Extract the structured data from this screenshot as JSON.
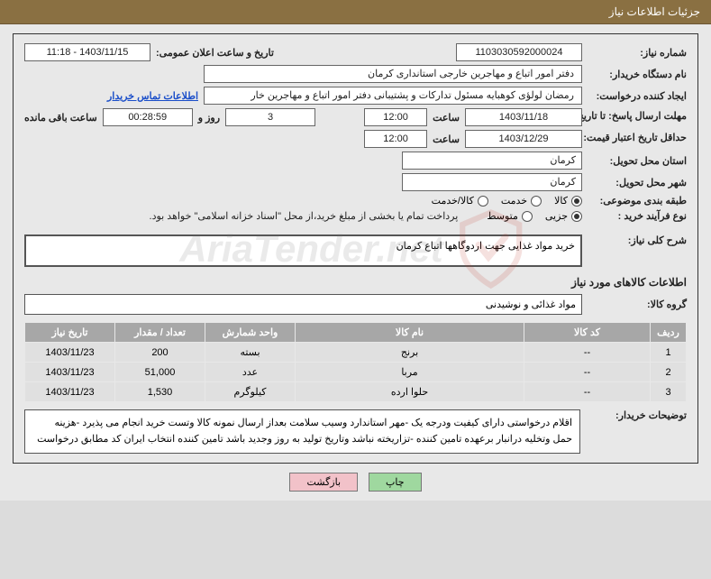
{
  "titleBar": "جزئیات اطلاعات نیاز",
  "fields": {
    "needNo": {
      "label": "شماره نیاز:",
      "value": "1103030592000024"
    },
    "announceDate": {
      "label": "تاریخ و ساعت اعلان عمومی:",
      "value": "1403/11/15 - 11:18"
    },
    "buyerOrg": {
      "label": "نام دستگاه خریدار:",
      "value": "دفتر  امور اتباع و مهاجرین خارجی استانداری کرمان"
    },
    "requester": {
      "label": "ایجاد کننده درخواست:",
      "value": "رمضان لولؤی کوهبایه مسئول تدارکات و پشتیبانی دفتر  امور اتباع و مهاجرین خار"
    },
    "contactLink": "اطلاعات تماس خریدار",
    "replyDeadline": {
      "label": "مهلت ارسال پاسخ: تا تاریخ:",
      "date": "1403/11/18",
      "timeLabel": "ساعت",
      "time": "12:00",
      "daysLabel": "روز و",
      "days": "3",
      "countdown": "00:28:59",
      "remainLabel": "ساعت باقی مانده"
    },
    "priceValidity": {
      "label": "حداقل تاریخ اعتبار قیمت: تا تاریخ:",
      "date": "1403/12/29",
      "timeLabel": "ساعت",
      "time": "12:00"
    },
    "deliveryProvince": {
      "label": "استان محل تحویل:",
      "value": "کرمان"
    },
    "deliveryCity": {
      "label": "شهر محل تحویل:",
      "value": "کرمان"
    },
    "category": {
      "label": "طبقه بندی موضوعی:",
      "options": [
        "کالا",
        "خدمت",
        "کالا/خدمت"
      ],
      "selected": 0
    },
    "purchaseProcess": {
      "label": "نوع فرآیند خرید :",
      "options": [
        "جزیی",
        "متوسط"
      ],
      "selected": 0,
      "note": "پرداخت تمام یا بخشی از مبلغ خرید،از محل \"اسناد خزانه اسلامی\" خواهد بود."
    },
    "needDesc": {
      "label": "شرح کلی نیاز:",
      "value": "خرید مواد غذایی جهت اردوگاهها  اتباع کرمان"
    },
    "itemsHeading": "اطلاعات کالاهای مورد نیاز",
    "itemGroup": {
      "label": "گروه کالا:",
      "value": "مواد غذائی و نوشیدنی"
    },
    "buyerNotes": {
      "label": "توضیحات خریدار:",
      "value": "اقلام درخواستی دارای کیفیت ودرجه یک -مهر استاندارد وسیب سلامت  بعداز ارسال نمونه کالا وتست خرید انجام می پذیرد -هزینه حمل وتخلیه درانبار برعهده تامین کننده -تزاریخته نباشد وتاریخ تولید به روز وجدید باشد  تامین کننده انتخاب ایران کد مطابق درخواست"
    }
  },
  "table": {
    "columns": [
      "ردیف",
      "کد کالا",
      "نام کالا",
      "واحد شمارش",
      "تعداد / مقدار",
      "تاریخ نیاز"
    ],
    "rows": [
      [
        "1",
        "--",
        "برنج",
        "بسته",
        "200",
        "1403/11/23"
      ],
      [
        "2",
        "--",
        "مربا",
        "عدد",
        "51,000",
        "1403/11/23"
      ],
      [
        "3",
        "--",
        "حلوا ارده",
        "کیلوگرم",
        "1,530",
        "1403/11/23"
      ]
    ],
    "colWidths": [
      "40px",
      "140px",
      "auto",
      "100px",
      "100px",
      "100px"
    ]
  },
  "buttons": {
    "print": "چاپ",
    "back": "بازگشت"
  },
  "watermark": "AriaTender.net",
  "colors": {
    "titleBg": "#8a7042",
    "panelBg": "#e8e8e8",
    "thBg": "#a7a7a7",
    "btnGreen": "#9fd89f",
    "btnPink": "#f2c2c9",
    "watermarkRed": "#c23b2e"
  }
}
